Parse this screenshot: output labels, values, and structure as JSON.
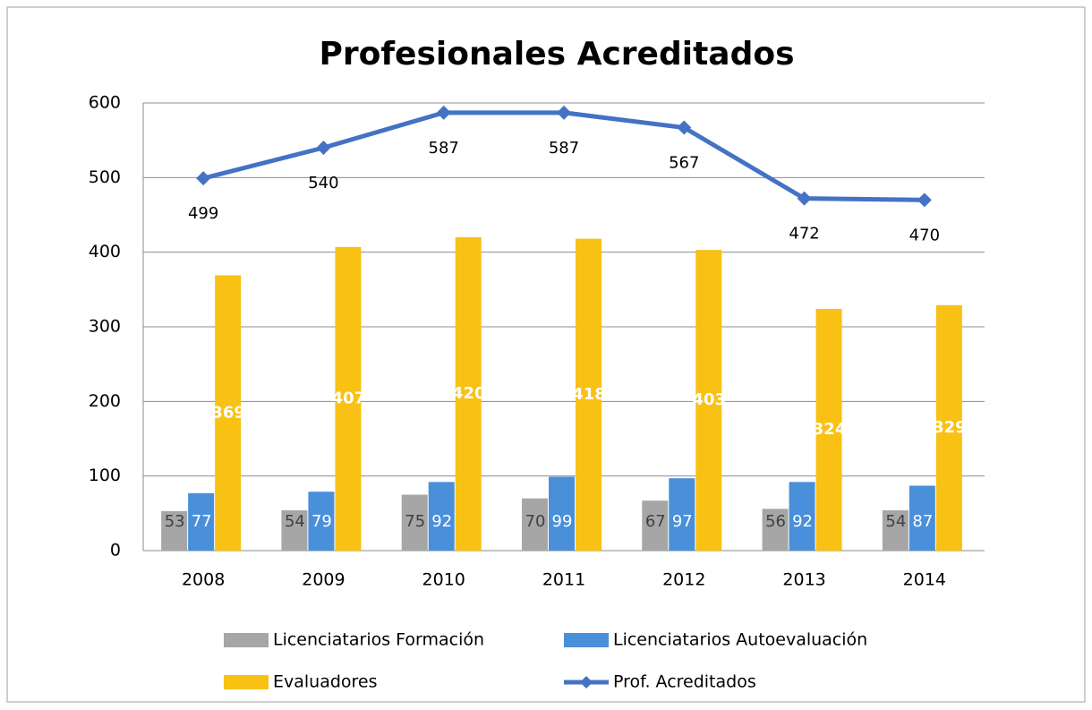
{
  "chart_data": {
    "type": "bar",
    "title": "Profesionales Acreditados",
    "categories": [
      "2008",
      "2009",
      "2010",
      "2011",
      "2012",
      "2013",
      "2014"
    ],
    "series": [
      {
        "name": "Licenciatarios Formación",
        "color": "#a6a6a6",
        "label_color": "#404040",
        "values": [
          53,
          54,
          75,
          70,
          67,
          56,
          54
        ]
      },
      {
        "name": "Licenciatarios Autoevaluación",
        "color": "#4a8fd9",
        "label_color": "#ffffff",
        "values": [
          77,
          79,
          92,
          99,
          97,
          92,
          87
        ]
      },
      {
        "name": "Evaluadores",
        "color": "#f8c114",
        "label_color": "#ffffff",
        "values": [
          369,
          407,
          420,
          418,
          403,
          324,
          329
        ]
      },
      {
        "name": "Prof. Acreditados",
        "type": "line",
        "color": "#4472c4",
        "label_color": "#000000",
        "values": [
          499,
          540,
          587,
          587,
          567,
          472,
          470
        ]
      }
    ],
    "ylim": [
      0,
      600
    ],
    "yticks": [
      0,
      100,
      200,
      300,
      400,
      500,
      600
    ],
    "grid": true
  }
}
